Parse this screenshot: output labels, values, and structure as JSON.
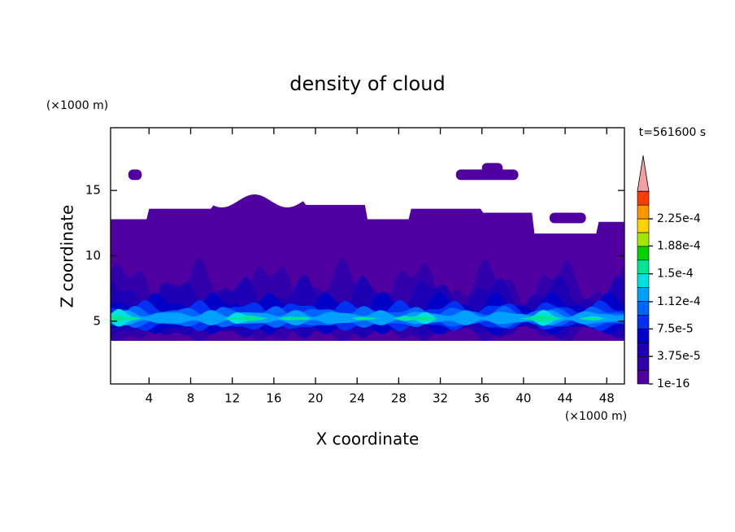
{
  "chart_data": {
    "type": "contour",
    "title": "density of cloud",
    "x_label": "X coordinate",
    "y_label": "Z coordinate",
    "x_unit": "(×1000 m)",
    "y_unit": "(×1000 m)",
    "time_label": "t=561600 s",
    "xlim": [
      0.3,
      49.7
    ],
    "ylim": [
      0.2,
      19.8
    ],
    "xticks": [
      4,
      8,
      12,
      16,
      20,
      24,
      28,
      32,
      36,
      40,
      44,
      48
    ],
    "yticks": [
      5,
      10,
      15
    ],
    "colorbar_ticks": [
      {
        "value": 1e-16,
        "label": "1e-16"
      },
      {
        "value": 3.75e-05,
        "label": "3.75e-5"
      },
      {
        "value": 7.5e-05,
        "label": "7.5e-5"
      },
      {
        "value": 0.000112,
        "label": "1.12e-4"
      },
      {
        "value": 0.00015,
        "label": "1.5e-4"
      },
      {
        "value": 0.000188,
        "label": "1.88e-4"
      },
      {
        "value": 0.000225,
        "label": "2.25e-4"
      }
    ],
    "level_colors": [
      "#5000a0",
      "#3200aa",
      "#1e00b4",
      "#0000c8",
      "#0030f0",
      "#0064ff",
      "#00a0ff",
      "#00e0e0",
      "#00e696",
      "#00d200",
      "#a0e600",
      "#ffd200",
      "#ff9600",
      "#ff3c00"
    ],
    "extend_color": "#f4a0a0"
  }
}
